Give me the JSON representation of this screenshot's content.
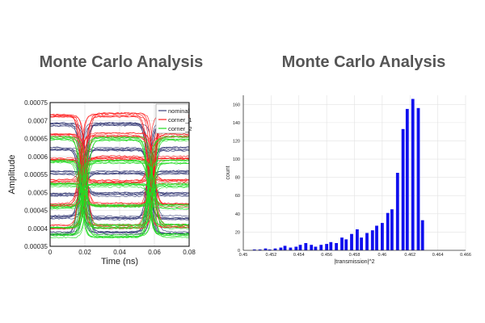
{
  "left_panel": {
    "title": "Monte Carlo Analysis"
  },
  "right_panel": {
    "title": "Monte Carlo Analysis"
  },
  "chart_data": [
    {
      "type": "line",
      "subtype": "eye-diagram",
      "title": "",
      "xlabel": "Time (ns)",
      "ylabel": "Amplitude",
      "xlim": [
        0,
        0.08
      ],
      "ylim": [
        0.00035,
        0.00075
      ],
      "x_ticks": [
        0,
        0.02,
        0.04,
        0.06,
        0.08
      ],
      "x_tick_labels": [
        "0",
        "0.02",
        "0.04",
        "0.06",
        "0.08"
      ],
      "y_ticks": [
        0.00035,
        0.0004,
        0.00045,
        0.0005,
        0.00055,
        0.0006,
        0.00065,
        0.0007,
        0.00075
      ],
      "y_tick_labels": [
        "0.00035",
        "0.0004",
        "0.00045",
        "0.0005",
        "0.00055",
        "0.0006",
        "0.00065",
        "0.0007",
        "0.00075"
      ],
      "grid": true,
      "legend_position": "top-right",
      "transitions_x": [
        0.019,
        0.058
      ],
      "series": [
        {
          "name": "nominal",
          "color": "#3b3f7a",
          "levels": [
            0.00069,
            0.00062,
            0.000555,
            0.000495,
            0.00043,
            0.000385
          ]
        },
        {
          "name": "corner_1",
          "color": "#ff2020",
          "levels": [
            0.000715,
            0.00066,
            0.000595,
            0.00053,
            0.000465,
            0.000405
          ]
        },
        {
          "name": "corner_2",
          "color": "#22dd22",
          "levels": [
            0.00065,
            0.000585,
            0.00052,
            0.00046,
            0.000405,
            0.00038
          ]
        }
      ]
    },
    {
      "type": "bar",
      "title": "",
      "xlabel": "|transmission|^2",
      "ylabel": "count",
      "xlim": [
        0.45,
        0.466
      ],
      "ylim": [
        0,
        170
      ],
      "x_ticks": [
        0.45,
        0.452,
        0.454,
        0.456,
        0.458,
        0.46,
        0.462,
        0.464,
        0.466
      ],
      "x_tick_labels": [
        "0.45",
        "0.452",
        "0.454",
        "0.456",
        "0.458",
        "0.46",
        "0.462",
        "0.464",
        "0.466"
      ],
      "y_ticks": [
        0,
        20,
        40,
        60,
        80,
        100,
        120,
        140,
        160
      ],
      "y_tick_labels": [
        "0",
        "20",
        "40",
        "60",
        "80",
        "100",
        "120",
        "140",
        "160"
      ],
      "grid": true,
      "color": "#1010ee",
      "bin_width": 0.00036,
      "bins": [
        {
          "x": 0.4508,
          "count": 1
        },
        {
          "x": 0.4512,
          "count": 1
        },
        {
          "x": 0.4516,
          "count": 2
        },
        {
          "x": 0.4519,
          "count": 1
        },
        {
          "x": 0.4523,
          "count": 2
        },
        {
          "x": 0.4527,
          "count": 3
        },
        {
          "x": 0.453,
          "count": 5
        },
        {
          "x": 0.4534,
          "count": 3
        },
        {
          "x": 0.4538,
          "count": 4
        },
        {
          "x": 0.4541,
          "count": 6
        },
        {
          "x": 0.4545,
          "count": 8
        },
        {
          "x": 0.4549,
          "count": 6
        },
        {
          "x": 0.4552,
          "count": 4
        },
        {
          "x": 0.4556,
          "count": 6
        },
        {
          "x": 0.456,
          "count": 7
        },
        {
          "x": 0.4563,
          "count": 9
        },
        {
          "x": 0.4567,
          "count": 8
        },
        {
          "x": 0.4571,
          "count": 14
        },
        {
          "x": 0.4574,
          "count": 12
        },
        {
          "x": 0.4578,
          "count": 18
        },
        {
          "x": 0.4582,
          "count": 23
        },
        {
          "x": 0.4585,
          "count": 14
        },
        {
          "x": 0.4589,
          "count": 19
        },
        {
          "x": 0.4593,
          "count": 22
        },
        {
          "x": 0.4596,
          "count": 27
        },
        {
          "x": 0.46,
          "count": 30
        },
        {
          "x": 0.4604,
          "count": 41
        },
        {
          "x": 0.4607,
          "count": 45
        },
        {
          "x": 0.4611,
          "count": 85
        },
        {
          "x": 0.4615,
          "count": 133
        },
        {
          "x": 0.4618,
          "count": 155
        },
        {
          "x": 0.4622,
          "count": 166
        },
        {
          "x": 0.4626,
          "count": 156
        },
        {
          "x": 0.4629,
          "count": 33
        }
      ]
    }
  ]
}
